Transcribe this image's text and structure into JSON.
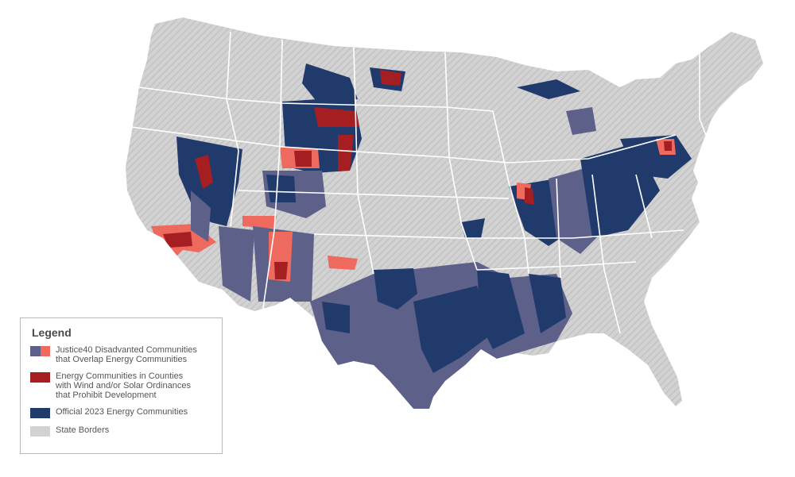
{
  "legend": {
    "title": "Legend",
    "items": [
      {
        "label": "Justice40 Disadvanted Communities\nthat Overlap Energy Communities",
        "colors": [
          "#5d6089",
          "#ee6a5f"
        ]
      },
      {
        "label": "Energy Communities in Counties\nwith Wind and/or Solar Ordinances\nthat Prohibit Development",
        "colors": [
          "#a51e22"
        ]
      },
      {
        "label": "Official 2023 Energy Communities",
        "colors": [
          "#1f3a6b"
        ]
      },
      {
        "label": "State Borders",
        "colors": [
          "#d2d2d2"
        ]
      }
    ]
  },
  "colors": {
    "official_energy": "#1f3a6b",
    "justice40_purple": "#5d6089",
    "justice40_salmon": "#ee6a5f",
    "prohibit_red": "#a51e22",
    "state_fill": "#d2d2d2",
    "state_hatch": "#bdbdbd",
    "state_border": "#ffffff"
  }
}
